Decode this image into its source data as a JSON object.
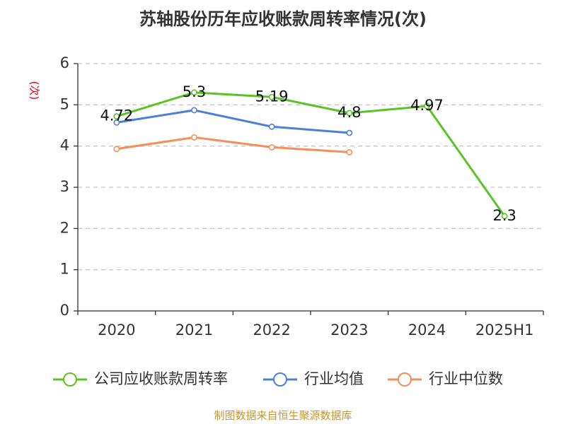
{
  "chart_data": {
    "type": "line",
    "title": "苏轴股份历年应收账款周转率情况(次)",
    "ylabel": "(次)",
    "xlabel": "",
    "categories": [
      "2020",
      "2021",
      "2022",
      "2023",
      "2024",
      "2025H1"
    ],
    "ylim": [
      0,
      6
    ],
    "yticks": [
      0,
      1,
      2,
      3,
      4,
      5,
      6
    ],
    "grid": "horizontal-dashed",
    "legend_position": "bottom",
    "series": [
      {
        "name": "公司应收账款周转率",
        "color": "#5cc326",
        "values": [
          4.72,
          5.3,
          5.19,
          4.8,
          4.97,
          2.3
        ],
        "labels": [
          "4.72",
          "5.3",
          "5.19",
          "4.8",
          "4.97",
          "2.3"
        ]
      },
      {
        "name": "行业均值",
        "color": "#4e7fd8",
        "values": [
          4.57,
          4.87,
          4.47,
          4.32,
          null,
          null
        ]
      },
      {
        "name": "行业中位数",
        "color": "#f58f5a",
        "values": [
          3.93,
          4.21,
          3.97,
          3.85,
          null,
          null
        ]
      }
    ]
  },
  "source_text": "制图数据来自恒生聚源数据库"
}
